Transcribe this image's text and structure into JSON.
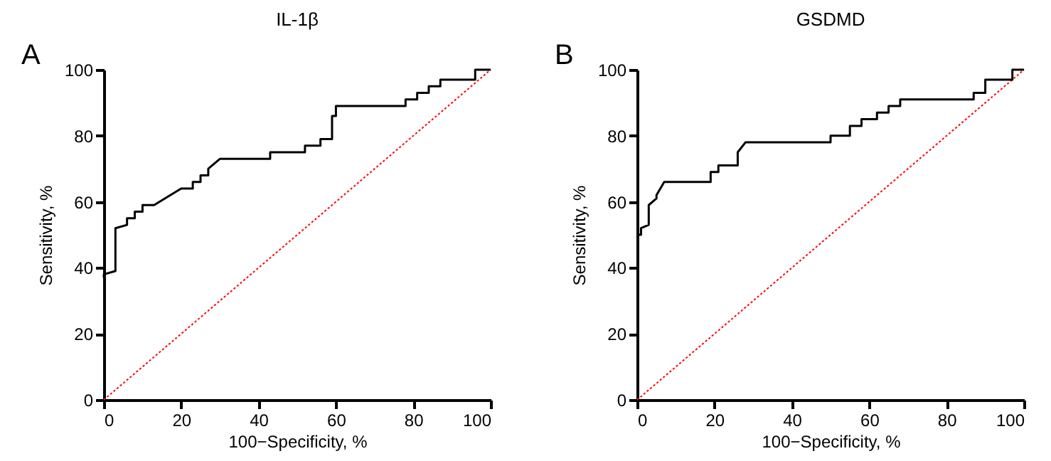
{
  "chart_data": [
    {
      "type": "line",
      "title": "IL-1β",
      "xlabel": "100−Specificity, %",
      "ylabel": "Sensitivity, %",
      "annotations": [
        "A"
      ],
      "xlim": [
        0,
        100
      ],
      "xticks": [
        0,
        20,
        40,
        60,
        80,
        100
      ],
      "ylim": [
        0,
        100
      ],
      "yticks": [
        0,
        20,
        40,
        60,
        80,
        100
      ],
      "grid": false,
      "series": [
        {
          "color": "#ff0000",
          "line_style": "dotted",
          "x": [
            0,
            100
          ],
          "values": [
            0,
            100
          ]
        },
        {
          "color": "#000000",
          "line_style": "solid",
          "x": [
            0,
            0,
            3,
            3,
            6,
            6,
            8,
            8,
            10,
            10,
            13,
            20,
            23,
            23,
            25,
            25,
            27,
            27,
            30,
            43,
            43,
            52,
            52,
            56,
            56,
            59,
            59,
            60,
            60,
            78,
            78,
            81,
            81,
            84,
            84,
            87,
            87,
            96,
            96,
            100
          ],
          "values": [
            37,
            38,
            39,
            52,
            53,
            55,
            55,
            57,
            57,
            59,
            59,
            64,
            64,
            66,
            66,
            68,
            68,
            70,
            73,
            73,
            75,
            75,
            77,
            77,
            79,
            79,
            86,
            86,
            89,
            89,
            91,
            91,
            93,
            93,
            95,
            95,
            97,
            97,
            100,
            100
          ]
        }
      ]
    },
    {
      "type": "line",
      "title": "GSDMD",
      "xlabel": "100−Specificity, %",
      "ylabel": "Sensitivity, %",
      "annotations": [
        "B"
      ],
      "xlim": [
        0,
        100
      ],
      "xticks": [
        0,
        20,
        40,
        60,
        80,
        100
      ],
      "ylim": [
        0,
        100
      ],
      "yticks": [
        0,
        20,
        40,
        60,
        80,
        100
      ],
      "grid": false,
      "series": [
        {
          "color": "#ff0000",
          "line_style": "dotted",
          "x": [
            0,
            100
          ],
          "values": [
            0,
            100
          ]
        },
        {
          "color": "#000000",
          "line_style": "solid",
          "x": [
            0,
            1,
            1,
            3,
            3,
            5,
            5,
            7,
            19,
            19,
            21,
            21,
            26,
            26,
            28,
            50,
            50,
            55,
            55,
            58,
            58,
            62,
            62,
            65,
            65,
            68,
            68,
            87,
            87,
            90,
            90,
            97,
            97,
            100
          ],
          "values": [
            50,
            50,
            52,
            53,
            59,
            61,
            62,
            66,
            66,
            69,
            69,
            71,
            71,
            75,
            78,
            78,
            80,
            80,
            83,
            83,
            85,
            85,
            87,
            87,
            89,
            89,
            91,
            91,
            93,
            93,
            97,
            97,
            100,
            100
          ]
        }
      ]
    }
  ]
}
